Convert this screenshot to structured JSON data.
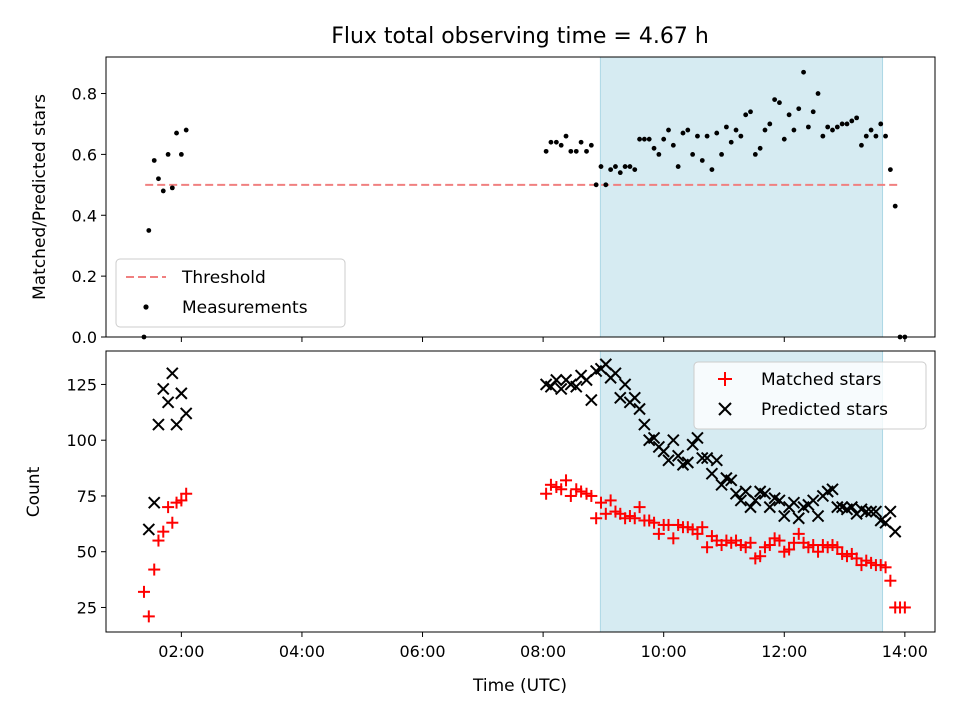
{
  "chart_data": [
    {
      "type": "scatter",
      "title": "Flux total observing time = 4.67 h",
      "xlabel": "",
      "ylabel": "Matched/Predicted stars",
      "xlim": [
        0.75,
        14.5
      ],
      "ylim": [
        0.0,
        0.92
      ],
      "yticks": [
        0.0,
        0.2,
        0.4,
        0.6,
        0.8
      ],
      "ytick_labels": [
        "0.0",
        "0.2",
        "0.4",
        "0.6",
        "0.8"
      ],
      "shaded_region": [
        8.95,
        13.63
      ],
      "legend_position": "lower-left",
      "threshold": {
        "name": "Threshold",
        "x": [
          1.4,
          13.9
        ],
        "value": 0.5,
        "color": "#f08080"
      },
      "series": [
        {
          "name": "Measurements",
          "color": "#000000",
          "points": [
            [
              1.38,
              0.0
            ],
            [
              1.46,
              0.35
            ],
            [
              1.55,
              0.58
            ],
            [
              1.62,
              0.52
            ],
            [
              1.7,
              0.48
            ],
            [
              1.78,
              0.6
            ],
            [
              1.85,
              0.49
            ],
            [
              1.92,
              0.67
            ],
            [
              2.0,
              0.6
            ],
            [
              2.08,
              0.68
            ],
            [
              8.05,
              0.61
            ],
            [
              8.13,
              0.64
            ],
            [
              8.22,
              0.64
            ],
            [
              8.3,
              0.63
            ],
            [
              8.38,
              0.66
            ],
            [
              8.46,
              0.61
            ],
            [
              8.55,
              0.61
            ],
            [
              8.63,
              0.64
            ],
            [
              8.72,
              0.61
            ],
            [
              8.8,
              0.63
            ],
            [
              8.88,
              0.5
            ],
            [
              8.96,
              0.56
            ],
            [
              9.04,
              0.5
            ],
            [
              9.12,
              0.55
            ],
            [
              9.2,
              0.56
            ],
            [
              9.28,
              0.54
            ],
            [
              9.36,
              0.56
            ],
            [
              9.44,
              0.56
            ],
            [
              9.52,
              0.55
            ],
            [
              9.6,
              0.65
            ],
            [
              9.68,
              0.65
            ],
            [
              9.76,
              0.65
            ],
            [
              9.84,
              0.62
            ],
            [
              9.92,
              0.6
            ],
            [
              10.0,
              0.65
            ],
            [
              10.08,
              0.68
            ],
            [
              10.16,
              0.63
            ],
            [
              10.24,
              0.56
            ],
            [
              10.32,
              0.67
            ],
            [
              10.4,
              0.68
            ],
            [
              10.48,
              0.6
            ],
            [
              10.56,
              0.66
            ],
            [
              10.64,
              0.58
            ],
            [
              10.72,
              0.66
            ],
            [
              10.8,
              0.55
            ],
            [
              10.88,
              0.67
            ],
            [
              10.96,
              0.6
            ],
            [
              11.04,
              0.69
            ],
            [
              11.12,
              0.64
            ],
            [
              11.2,
              0.68
            ],
            [
              11.28,
              0.66
            ],
            [
              11.36,
              0.73
            ],
            [
              11.44,
              0.74
            ],
            [
              11.52,
              0.6
            ],
            [
              11.6,
              0.62
            ],
            [
              11.68,
              0.68
            ],
            [
              11.76,
              0.7
            ],
            [
              11.84,
              0.78
            ],
            [
              11.92,
              0.77
            ],
            [
              12.0,
              0.65
            ],
            [
              12.08,
              0.73
            ],
            [
              12.16,
              0.68
            ],
            [
              12.24,
              0.75
            ],
            [
              12.32,
              0.87
            ],
            [
              12.4,
              0.69
            ],
            [
              12.48,
              0.74
            ],
            [
              12.56,
              0.8
            ],
            [
              12.64,
              0.66
            ],
            [
              12.72,
              0.69
            ],
            [
              12.8,
              0.68
            ],
            [
              12.88,
              0.69
            ],
            [
              12.96,
              0.7
            ],
            [
              13.04,
              0.7
            ],
            [
              13.12,
              0.71
            ],
            [
              13.2,
              0.72
            ],
            [
              13.28,
              0.63
            ],
            [
              13.36,
              0.66
            ],
            [
              13.44,
              0.68
            ],
            [
              13.52,
              0.66
            ],
            [
              13.6,
              0.7
            ],
            [
              13.68,
              0.66
            ],
            [
              13.76,
              0.55
            ],
            [
              13.84,
              0.43
            ],
            [
              13.92,
              0.0
            ],
            [
              14.0,
              0.0
            ]
          ]
        }
      ]
    },
    {
      "type": "scatter",
      "title": "",
      "xlabel": "Time (UTC)",
      "ylabel": "Count",
      "xlim": [
        0.75,
        14.5
      ],
      "ylim": [
        14,
        140
      ],
      "xticks": [
        2,
        4,
        6,
        8,
        10,
        12,
        14
      ],
      "xtick_labels": [
        "02:00",
        "04:00",
        "06:00",
        "08:00",
        "10:00",
        "12:00",
        "14:00"
      ],
      "yticks": [
        25,
        50,
        75,
        100,
        125
      ],
      "ytick_labels": [
        "25",
        "50",
        "75",
        "100",
        "125"
      ],
      "shaded_region": [
        8.95,
        13.63
      ],
      "legend_position": "upper-right",
      "series": [
        {
          "name": "Matched stars",
          "marker": "plus",
          "color": "#ff0000",
          "points": [
            [
              1.38,
              32
            ],
            [
              1.46,
              21
            ],
            [
              1.55,
              42
            ],
            [
              1.62,
              55
            ],
            [
              1.7,
              59
            ],
            [
              1.78,
              70
            ],
            [
              1.85,
              63
            ],
            [
              1.92,
              72
            ],
            [
              2.0,
              73
            ],
            [
              2.08,
              76
            ],
            [
              8.05,
              76
            ],
            [
              8.13,
              80
            ],
            [
              8.22,
              79
            ],
            [
              8.3,
              78
            ],
            [
              8.38,
              82
            ],
            [
              8.46,
              75
            ],
            [
              8.55,
              78
            ],
            [
              8.63,
              77
            ],
            [
              8.72,
              76
            ],
            [
              8.8,
              75
            ],
            [
              8.88,
              65
            ],
            [
              8.96,
              72
            ],
            [
              9.04,
              67
            ],
            [
              9.12,
              73
            ],
            [
              9.2,
              68
            ],
            [
              9.28,
              67
            ],
            [
              9.36,
              65
            ],
            [
              9.44,
              66
            ],
            [
              9.52,
              65
            ],
            [
              9.6,
              70
            ],
            [
              9.68,
              64
            ],
            [
              9.76,
              64
            ],
            [
              9.84,
              63
            ],
            [
              9.92,
              58
            ],
            [
              10.0,
              62
            ],
            [
              10.08,
              62
            ],
            [
              10.16,
              56
            ],
            [
              10.24,
              62
            ],
            [
              10.32,
              61
            ],
            [
              10.4,
              61
            ],
            [
              10.48,
              60
            ],
            [
              10.56,
              58
            ],
            [
              10.64,
              61
            ],
            [
              10.72,
              52
            ],
            [
              10.8,
              57
            ],
            [
              10.88,
              55
            ],
            [
              10.96,
              53
            ],
            [
              11.04,
              55
            ],
            [
              11.12,
              54
            ],
            [
              11.2,
              55
            ],
            [
              11.28,
              53
            ],
            [
              11.36,
              52
            ],
            [
              11.44,
              54
            ],
            [
              11.52,
              47
            ],
            [
              11.6,
              48
            ],
            [
              11.68,
              52
            ],
            [
              11.76,
              53
            ],
            [
              11.84,
              56
            ],
            [
              11.92,
              55
            ],
            [
              12.0,
              50
            ],
            [
              12.08,
              51
            ],
            [
              12.16,
              54
            ],
            [
              12.24,
              58
            ],
            [
              12.32,
              54
            ],
            [
              12.4,
              52
            ],
            [
              12.48,
              53
            ],
            [
              12.56,
              50
            ],
            [
              12.64,
              53
            ],
            [
              12.72,
              52
            ],
            [
              12.8,
              53
            ],
            [
              12.88,
              52
            ],
            [
              12.96,
              49
            ],
            [
              13.04,
              48
            ],
            [
              13.12,
              49
            ],
            [
              13.2,
              47
            ],
            [
              13.28,
              44
            ],
            [
              13.36,
              46
            ],
            [
              13.44,
              45
            ],
            [
              13.52,
              44
            ],
            [
              13.6,
              44
            ],
            [
              13.68,
              43
            ],
            [
              13.76,
              37
            ],
            [
              13.84,
              25
            ],
            [
              13.92,
              25
            ],
            [
              14.0,
              25
            ]
          ]
        },
        {
          "name": "Predicted stars",
          "marker": "x",
          "color": "#000000",
          "points": [
            [
              1.46,
              60
            ],
            [
              1.55,
              72
            ],
            [
              1.62,
              107
            ],
            [
              1.7,
              123
            ],
            [
              1.78,
              117
            ],
            [
              1.85,
              130
            ],
            [
              1.92,
              107
            ],
            [
              2.0,
              121
            ],
            [
              2.08,
              112
            ],
            [
              8.05,
              125
            ],
            [
              8.13,
              124
            ],
            [
              8.22,
              127
            ],
            [
              8.3,
              123
            ],
            [
              8.38,
              127
            ],
            [
              8.46,
              125
            ],
            [
              8.55,
              124
            ],
            [
              8.63,
              129
            ],
            [
              8.72,
              127
            ],
            [
              8.8,
              118
            ],
            [
              8.88,
              131
            ],
            [
              8.96,
              132
            ],
            [
              9.04,
              134
            ],
            [
              9.12,
              128
            ],
            [
              9.2,
              130
            ],
            [
              9.28,
              119
            ],
            [
              9.36,
              125
            ],
            [
              9.44,
              117
            ],
            [
              9.52,
              119
            ],
            [
              9.6,
              114
            ],
            [
              9.68,
              107
            ],
            [
              9.76,
              100
            ],
            [
              9.84,
              101
            ],
            [
              9.92,
              97
            ],
            [
              10.0,
              95
            ],
            [
              10.08,
              91
            ],
            [
              10.16,
              100
            ],
            [
              10.24,
              93
            ],
            [
              10.32,
              89
            ],
            [
              10.4,
              90
            ],
            [
              10.48,
              98
            ],
            [
              10.56,
              101
            ],
            [
              10.64,
              92
            ],
            [
              10.72,
              92
            ],
            [
              10.8,
              85
            ],
            [
              10.88,
              91
            ],
            [
              10.96,
              80
            ],
            [
              11.04,
              83
            ],
            [
              11.12,
              82
            ],
            [
              11.2,
              76
            ],
            [
              11.28,
              73
            ],
            [
              11.36,
              77
            ],
            [
              11.44,
              70
            ],
            [
              11.52,
              73
            ],
            [
              11.6,
              77
            ],
            [
              11.68,
              76
            ],
            [
              11.76,
              70
            ],
            [
              11.84,
              74
            ],
            [
              11.92,
              73
            ],
            [
              12.0,
              66
            ],
            [
              12.08,
              70
            ],
            [
              12.16,
              72
            ],
            [
              12.24,
              65
            ],
            [
              12.32,
              70
            ],
            [
              12.4,
              71
            ],
            [
              12.48,
              73
            ],
            [
              12.56,
              66
            ],
            [
              12.64,
              75
            ],
            [
              12.72,
              77
            ],
            [
              12.8,
              78
            ],
            [
              12.88,
              70
            ],
            [
              12.96,
              70
            ],
            [
              13.04,
              69
            ],
            [
              13.12,
              70
            ],
            [
              13.2,
              67
            ],
            [
              13.28,
              69
            ],
            [
              13.36,
              68
            ],
            [
              13.44,
              68
            ],
            [
              13.52,
              68
            ],
            [
              13.6,
              64
            ],
            [
              13.68,
              63
            ],
            [
              13.76,
              68
            ],
            [
              13.84,
              59
            ]
          ]
        }
      ]
    }
  ]
}
